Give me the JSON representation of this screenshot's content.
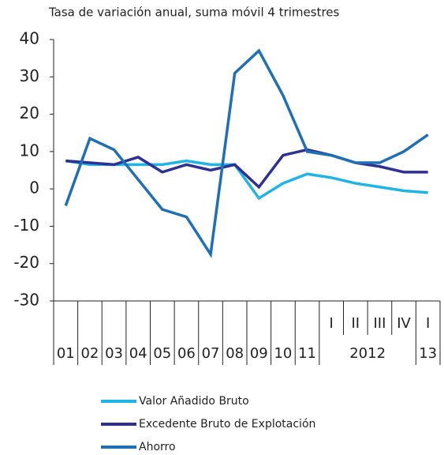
{
  "chart_data": {
    "type": "line",
    "subtitle": "Tasa de variación anual, suma móvil 4 trimestres",
    "categories": [
      "01",
      "02",
      "03",
      "04",
      "05",
      "06",
      "07",
      "08",
      "09",
      "10",
      "11",
      "I",
      "II",
      "III",
      "IV",
      "I"
    ],
    "category_years": [
      null,
      null,
      null,
      null,
      null,
      null,
      null,
      null,
      null,
      null,
      null,
      "2012",
      "2012",
      "2012",
      "2012",
      "13"
    ],
    "ylim": [
      -30,
      40
    ],
    "yticks": [
      -30,
      -20,
      -10,
      0,
      10,
      20,
      30,
      40
    ],
    "series": [
      {
        "name": "Valor Añadido Bruto",
        "color": "#1fb3e6",
        "values": [
          7.5,
          6.5,
          6.5,
          6.5,
          6.5,
          7.5,
          6.5,
          6.5,
          -2.5,
          1.5,
          4,
          3,
          1.5,
          0.5,
          -0.5,
          -1
        ]
      },
      {
        "name": "Excedente Bruto de Explotación",
        "color": "#2e3192",
        "values": [
          7.5,
          7,
          6.5,
          8.5,
          4.5,
          6.5,
          5,
          6.5,
          0.5,
          9,
          10.5,
          9,
          7,
          6,
          4.5,
          4.5
        ]
      },
      {
        "name": "Ahorro",
        "color": "#1f6fb5",
        "values": [
          -4.5,
          13.5,
          10.5,
          2.5,
          -5.5,
          -7.5,
          -17.5,
          31,
          37,
          25,
          10,
          9,
          7,
          7,
          10,
          14.5
        ]
      }
    ]
  }
}
